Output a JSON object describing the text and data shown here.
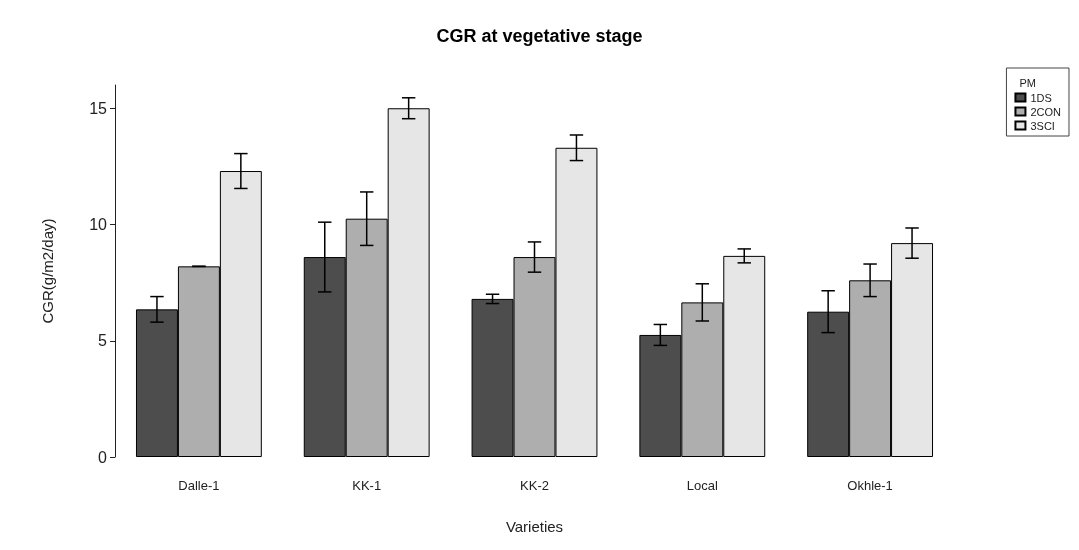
{
  "chart_data": {
    "type": "bar",
    "title": "CGR at vegetative stage",
    "xlabel": "Varieties",
    "ylabel": "CGR(g/m2/day)",
    "legend_title": "PM",
    "categories": [
      "Dalle-1",
      "KK-1",
      "KK-2",
      "Local",
      "Okhle-1"
    ],
    "series": [
      {
        "name": "1DS",
        "color": "#4d4d4d",
        "values": [
          6.35,
          8.6,
          6.8,
          5.25,
          6.25
        ],
        "errors": [
          0.55,
          1.5,
          0.2,
          0.45,
          0.9
        ]
      },
      {
        "name": "2CON",
        "color": "#aeaeae",
        "values": [
          8.2,
          10.25,
          8.6,
          6.65,
          7.6
        ],
        "errors": [
          0,
          1.15,
          0.65,
          0.8,
          0.7
        ]
      },
      {
        "name": "3SCI",
        "color": "#e6e6e6",
        "values": [
          12.3,
          15,
          13.3,
          8.65,
          9.2
        ],
        "errors": [
          0.75,
          0.45,
          0.55,
          0.3,
          0.65
        ]
      }
    ],
    "ylim": [
      0,
      16
    ],
    "yticks": [
      0,
      5,
      10,
      15
    ],
    "grid": false,
    "legend": "top right"
  }
}
